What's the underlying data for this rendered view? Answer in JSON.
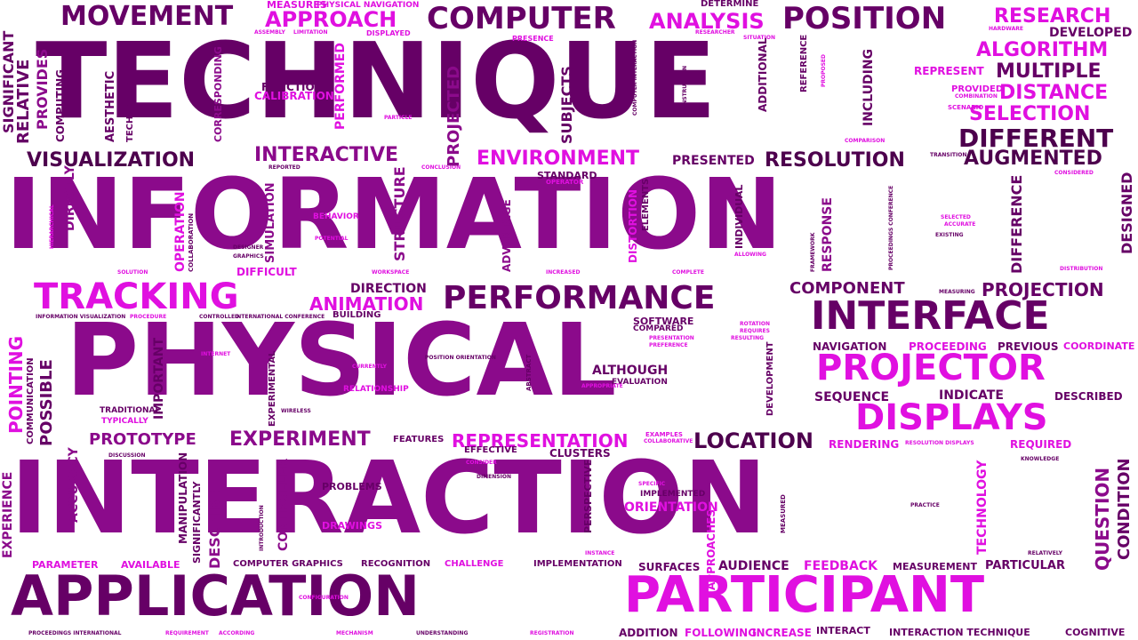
{
  "colors": {
    "dark": "#660066",
    "medium": "#8b0a8b",
    "bright": "#e010e0",
    "violet": "#b000b0",
    "deep": "#4d004d",
    "background": "#ffffff"
  },
  "words": {
    "technique": "TECHNIQUE",
    "information": "INFORMATION",
    "physical": "PHYSICAL",
    "interaction": "INTERACTION",
    "application": "APPLICATION",
    "participant": "PARTICIPANT",
    "tracking": "TRACKING",
    "performance": "PERFORMANCE",
    "interface": "INTERFACE",
    "projector": "PROJECTOR",
    "displays": "DISPLAYS",
    "computer": "COMPUTER",
    "position": "POSITION",
    "movement": "MOVEMENT",
    "approach": "APPROACH",
    "analysis": "ANALYSIS",
    "research": "RESEARCH",
    "algorithm": "ALGORITHM",
    "multiple": "MULTIPLE",
    "distance": "DISTANCE",
    "selection": "SELECTION",
    "different": "DIFFERENT",
    "augmented": "AUGMENTED",
    "resolution": "RESOLUTION",
    "environment": "ENVIRONMENT",
    "visualization": "VISUALIZATION",
    "interactive": "INTERACTIVE",
    "presented": "PRESENTED",
    "animation": "ANIMATION",
    "component": "COMPONENT",
    "projection": "PROJECTION",
    "representation": "REPRESENTATION",
    "experiment": "EXPERIMENT",
    "prototype": "PROTOTYPE",
    "location": "LOCATION",
    "orientation": "ORIENTATION",
    "direction": "DIRECTION",
    "although": "ALTHOUGH",
    "developed": "DEVELOPED",
    "determine": "DETERMINE",
    "measures": "MEASURES",
    "physical_navigation": "PHYSICAL NAVIGATION",
    "represent": "REPRESENT",
    "provided": "PROVIDED",
    "function": "FUNCTION",
    "calibration": "CALIBRATION",
    "standard": "STANDARD",
    "operator": "OPERATOR",
    "behavior": "BEHAVIOR",
    "potential": "POTENTIAL",
    "difficult": "DIFFICULT",
    "building": "BUILDING",
    "software": "SOFTWARE",
    "compared": "COMPARED",
    "navigation": "NAVIGATION",
    "proceeding": "PROCEEDING",
    "previous": "PREVIOUS",
    "coordinate": "COORDINATE",
    "sequence": "SEQUENCE",
    "indicate": "INDICATE",
    "described": "DESCRIBED",
    "rendering": "RENDERING",
    "required": "REQUIRED",
    "features": "FEATURES",
    "effective": "EFFECTIVE",
    "clusters": "CLUSTERS",
    "problems": "PROBLEMS",
    "drawings": "DRAWINGS",
    "implemented": "IMPLEMENTED",
    "traditional": "TRADITIONAL",
    "typically": "TYPICALLY",
    "relationship": "RELATIONSHIP",
    "evaluation": "EVALUATION",
    "parameter": "PARAMETER",
    "available": "AVAILABLE",
    "computer_graphics": "COMPUTER GRAPHICS",
    "recognition": "RECOGNITION",
    "challenge": "CHALLENGE",
    "implementation": "IMPLEMENTATION",
    "surfaces": "SURFACES",
    "audience": "AUDIENCE",
    "feedback": "FEEDBACK",
    "measurement": "MEASUREMENT",
    "particular": "PARTICULAR",
    "addition": "ADDITION",
    "following": "FOLLOWING",
    "increase": "INCREASE",
    "interact": "INTERACT",
    "interaction_technique": "INTERACTION TECHNIQUE",
    "cognitive": "COGNITIVE",
    "significant": "SIGNIFICANT",
    "relative": "RELATIVE",
    "provides": "PROVIDES",
    "computing": "COMPUTING",
    "aesthetic": "AESTHETIC",
    "technologies": "TECHNOLOGIES",
    "corresponding": "CORRESPONDING",
    "performed": "PERFORMED",
    "projected": "PROJECTED",
    "subjects": "SUBJECTS",
    "additional": "ADDITIONAL",
    "reference": "REFERENCE",
    "including": "INCLUDING",
    "directly": "DIRECTLY",
    "operation": "OPERATION",
    "simulation": "SIMULATION",
    "structure": "STRUCTURE",
    "advantage": "ADVANTAGE",
    "distortion": "DISTORTION",
    "elements": "ELEMENTS",
    "individual": "INDIVIDUAL",
    "response": "RESPONSE",
    "difference": "DIFFERENCE",
    "designed": "DESIGNED",
    "pointing": "POINTING",
    "possible": "POSSIBLE",
    "communication": "COMMUNICATION",
    "important": "IMPORTANT",
    "experimental": "EXPERIMENTAL",
    "development": "DEVELOPMENT",
    "experience": "EXPERIENCE",
    "accuracy": "ACCURACY",
    "manipulation": "MANIPULATION",
    "significantly": "SIGNIFICANTLY",
    "describe": "DESCRIBE",
    "controller": "CONTROLLER",
    "perspective": "PERSPECTIVE",
    "approaches": "APPROACHES",
    "measured": "MEASURED",
    "technology": "TECHNOLOGY",
    "question": "QUESTION",
    "condition": "CONDITION",
    "hardware": "HARDWARE",
    "presence": "PRESENCE",
    "assembly": "ASSEMBLY",
    "limitation": "LIMITATION",
    "displayed": "DISPLAYED",
    "researcher": "RESEARCHER",
    "situation": "SITUATION",
    "scenario": "SCENARIO",
    "comparison": "COMPARISON",
    "transition": "TRANSITION",
    "considered": "CONSIDERED",
    "reported": "REPORTED",
    "conclusion": "CONCLUSION",
    "hierarchical": "HIERARCHICAL",
    "solution": "SOLUTION",
    "collaboration": "COLLABORATION",
    "designer": "DESIGNER",
    "graphics": "GRAPHICS",
    "workspace": "WORKSPACE",
    "increased": "INCREASED",
    "complete": "COMPLETE",
    "allowing": "ALLOWING",
    "framework": "FRAMEWORK",
    "proceedings_conference": "PROCEEDINGS CONFERENCE",
    "selected": "SELECTED",
    "accurate": "ACCURATE",
    "existing": "EXISTING",
    "distribution": "DISTRIBUTION",
    "measuring": "MEASURING",
    "information_visualization": "INFORMATION VISUALIZATION",
    "procedure": "PROCEDURE",
    "controlled": "CONTROLLED",
    "international_conference": "INTERNATIONAL CONFERENCE",
    "internet": "INTERNET",
    "currently": "CURRENTLY",
    "position_orientation": "POSITION ORIENTATION",
    "abstract": "ABSTRACT",
    "appropriate": "APPROPRIATE",
    "rotation": "ROTATION",
    "requires": "REQUIRES",
    "resulting": "RESULTING",
    "presentation": "PRESENTATION",
    "preference": "PREFERENCE",
    "wireless": "WIRELESS",
    "discussion": "DISCUSSION",
    "examples": "EXAMPLES",
    "collaborative": "COLLABORATIVE",
    "resolution_displays": "RESOLUTION DISPLAYS",
    "knowledge": "KNOWLEDGE",
    "consider": "CONSIDER",
    "dimension": "DIMENSION",
    "specific": "SPECIFIC",
    "practice": "PRACTICE",
    "introduction": "INTRODUCTION",
    "instance": "INSTANCE",
    "relatively": "RELATIVELY",
    "configuration": "CONFIGURATION",
    "proceedings_international": "PROCEEDINGS INTERNATIONAL",
    "requirement": "REQUIREMENT",
    "according": "ACCORDING",
    "mechanism": "MECHANISM",
    "understanding": "UNDERSTANDING",
    "registration": "REGISTRATION",
    "instruction": "INSTRUCTION",
    "computer_interaction": "COMPUTER INTERACTION",
    "proposed": "PROPOSED",
    "particle": "PARTICLE",
    "combination": "COMBINATION"
  }
}
